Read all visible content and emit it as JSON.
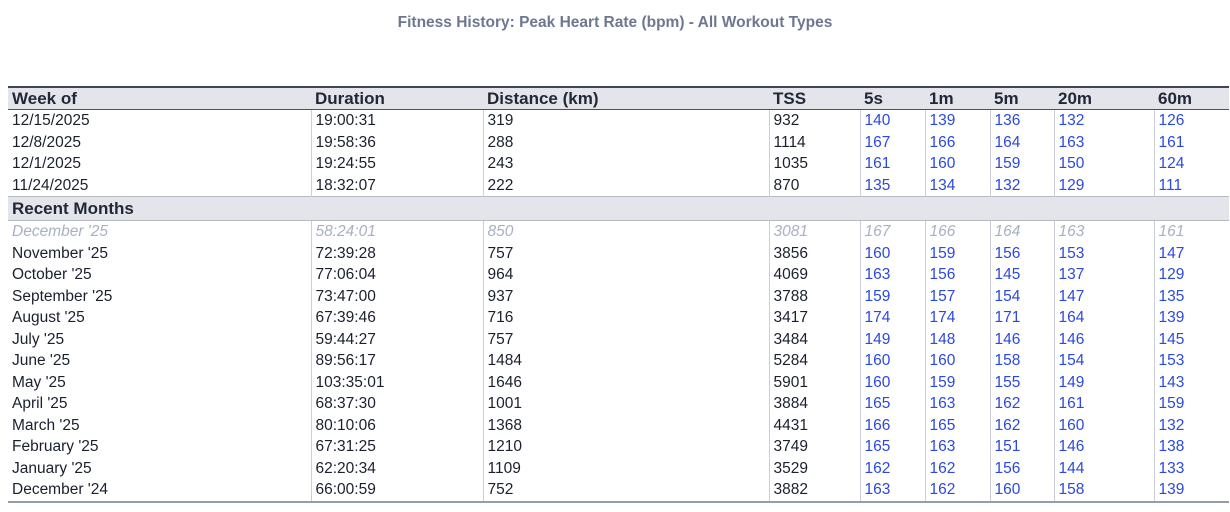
{
  "title": "Fitness History: Peak Heart Rate (bpm) - All Workout Types",
  "table": {
    "columns": [
      "Week of",
      "Duration",
      "Distance (km)",
      "TSS",
      "5s",
      "1m",
      "5m",
      "20m",
      "60m"
    ],
    "column_keys": [
      "week-of",
      "duration",
      "distance",
      "tss",
      "5s",
      "1m",
      "5m",
      "20m",
      "60m"
    ],
    "section_label": "Recent Months",
    "week_rows": [
      {
        "cells": [
          "12/15/2025",
          "19:00:31",
          "319",
          "932",
          "140",
          "139",
          "136",
          "132",
          "126"
        ],
        "muted": false
      },
      {
        "cells": [
          "12/8/2025",
          "19:58:36",
          "288",
          "1114",
          "167",
          "166",
          "164",
          "163",
          "161"
        ],
        "muted": false
      },
      {
        "cells": [
          "12/1/2025",
          "19:24:55",
          "243",
          "1035",
          "161",
          "160",
          "159",
          "150",
          "124"
        ],
        "muted": false
      },
      {
        "cells": [
          "11/24/2025",
          "18:32:07",
          "222",
          "870",
          "135",
          "134",
          "132",
          "129",
          "111"
        ],
        "muted": false
      }
    ],
    "month_rows": [
      {
        "cells": [
          "December '25",
          "58:24:01",
          "850",
          "3081",
          "167",
          "166",
          "164",
          "163",
          "161"
        ],
        "muted": true
      },
      {
        "cells": [
          "November '25",
          "72:39:28",
          "757",
          "3856",
          "160",
          "159",
          "156",
          "153",
          "147"
        ],
        "muted": false
      },
      {
        "cells": [
          "October '25",
          "77:06:04",
          "964",
          "4069",
          "163",
          "156",
          "145",
          "137",
          "129"
        ],
        "muted": false
      },
      {
        "cells": [
          "September '25",
          "73:47:00",
          "937",
          "3788",
          "159",
          "157",
          "154",
          "147",
          "135"
        ],
        "muted": false
      },
      {
        "cells": [
          "August '25",
          "67:39:46",
          "716",
          "3417",
          "174",
          "174",
          "171",
          "164",
          "139"
        ],
        "muted": false
      },
      {
        "cells": [
          "July '25",
          "59:44:27",
          "757",
          "3484",
          "149",
          "148",
          "146",
          "146",
          "145"
        ],
        "muted": false
      },
      {
        "cells": [
          "June '25",
          "89:56:17",
          "1484",
          "5284",
          "160",
          "160",
          "158",
          "154",
          "153"
        ],
        "muted": false
      },
      {
        "cells": [
          "May '25",
          "103:35:01",
          "1646",
          "5901",
          "160",
          "159",
          "155",
          "149",
          "143"
        ],
        "muted": false
      },
      {
        "cells": [
          "April '25",
          "68:37:30",
          "1001",
          "3884",
          "165",
          "163",
          "162",
          "161",
          "159"
        ],
        "muted": false
      },
      {
        "cells": [
          "March '25",
          "80:10:06",
          "1368",
          "4431",
          "166",
          "165",
          "162",
          "160",
          "132"
        ],
        "muted": false
      },
      {
        "cells": [
          "February '25",
          "67:31:25",
          "1210",
          "3749",
          "165",
          "163",
          "151",
          "146",
          "138"
        ],
        "muted": false
      },
      {
        "cells": [
          "January '25",
          "62:20:34",
          "1109",
          "3529",
          "162",
          "162",
          "156",
          "144",
          "133"
        ],
        "muted": false
      },
      {
        "cells": [
          "December '24",
          "66:00:59",
          "752",
          "3882",
          "163",
          "162",
          "160",
          "158",
          "139"
        ],
        "muted": false
      }
    ]
  },
  "colors": {
    "title_text": "#6d7890",
    "header_bg": "#e3e5ea",
    "header_text": "#232838",
    "body_text": "#1a202e",
    "link_blue": "#2b49df",
    "muted_text": "#a8b0c3",
    "cell_border": "#c9ced8",
    "table_top_border": "#40465a",
    "table_bottom_border": "#969daa"
  }
}
